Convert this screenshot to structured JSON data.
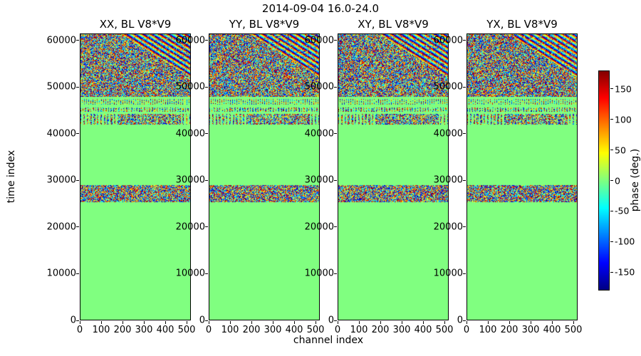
{
  "chart_data": {
    "type": "heatmap",
    "title": "2014-09-04 16.0-24.0",
    "subplot_titles": [
      "XX, BL V8*V9",
      "YY, BL V8*V9",
      "XY, BL V8*V9",
      "YX, BL V8*V9"
    ],
    "xlabel": "channel index",
    "ylabel": "time index",
    "colorbar_label": "phase (deg.)",
    "colormap": "jet",
    "value_unit": "deg",
    "value_range": [
      -180,
      180
    ],
    "x_range": [
      0,
      520
    ],
    "y_range": [
      0,
      61500
    ],
    "x_ticks": [
      0,
      100,
      200,
      300,
      400,
      500
    ],
    "y_ticks": [
      0,
      10000,
      20000,
      30000,
      40000,
      50000,
      60000
    ],
    "colorbar_ticks": [
      150,
      100,
      50,
      0,
      -50,
      -100,
      -150
    ],
    "background_phase": 0,
    "bands": [
      {
        "t_min": 0,
        "t_max": 25400,
        "pattern": "uniform"
      },
      {
        "t_min": 25400,
        "t_max": 29000,
        "pattern": "noise"
      },
      {
        "t_min": 29000,
        "t_max": 42000,
        "pattern": "uniform"
      },
      {
        "t_min": 42000,
        "t_max": 44200,
        "pattern": "stripes-patches",
        "stripe_period": 16,
        "patch": {
          "c_min": 180,
          "c_max": 470
        }
      },
      {
        "t_min": 44200,
        "t_max": 44700,
        "pattern": "uniform"
      },
      {
        "t_min": 44700,
        "t_max": 45600,
        "pattern": "stripes",
        "stripe_period": 12
      },
      {
        "t_min": 45600,
        "t_max": 46300,
        "pattern": "uniform"
      },
      {
        "t_min": 46300,
        "t_max": 47400,
        "pattern": "stripes",
        "stripe_period": 10
      },
      {
        "t_min": 47400,
        "t_max": 47900,
        "pattern": "uniform"
      },
      {
        "t_min": 47900,
        "t_max": 61500,
        "pattern": "noise-fringes",
        "fringe": {
          "c_at_top": 190,
          "slope_c_per_t": 0.035,
          "deg_per_channel": 9,
          "note": "diagonal phase-wrap fringes in upper-right corner fading into noise"
        }
      }
    ]
  }
}
